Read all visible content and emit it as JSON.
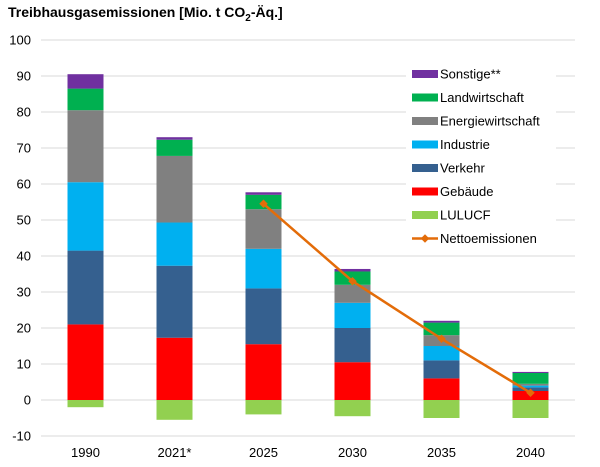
{
  "title": {
    "main": "Treibhausgasemissionen [Mio. t CO",
    "sub": "2",
    "suffix": "-Äq.]"
  },
  "chart_data": {
    "type": "bar",
    "stacked": true,
    "categories": [
      "1990",
      "2021*",
      "2025",
      "2030",
      "2035",
      "2040"
    ],
    "ylim": [
      -10,
      100
    ],
    "yticks": [
      -10,
      0,
      10,
      20,
      30,
      40,
      50,
      60,
      70,
      80,
      90,
      100
    ],
    "grid": true,
    "legend_position": "right",
    "series": [
      {
        "name": "Gebäude",
        "color": "#ff0000",
        "values": [
          21,
          17.3,
          15.5,
          10.5,
          6,
          2.5
        ]
      },
      {
        "name": "Verkehr",
        "color": "#35608f",
        "values": [
          20.5,
          20,
          15.5,
          9.5,
          5,
          1
        ]
      },
      {
        "name": "Industrie",
        "color": "#00b0f0",
        "values": [
          19,
          12,
          11,
          7,
          4,
          0.5
        ]
      },
      {
        "name": "Energiewirtschaft",
        "color": "#808080",
        "values": [
          20,
          18.5,
          11,
          5,
          3,
          0.5
        ]
      },
      {
        "name": "Landwirtschaft",
        "color": "#00b050",
        "values": [
          6,
          4.5,
          4,
          3.7,
          3.5,
          3
        ]
      },
      {
        "name": "Sonstige**",
        "color": "#7030a0",
        "values": [
          4,
          0.7,
          0.7,
          0.7,
          0.5,
          0.3
        ]
      },
      {
        "name": "LULUCF",
        "color": "#92d050",
        "values": [
          -2,
          -5.5,
          -4,
          -4.5,
          -5,
          -5
        ]
      }
    ],
    "line_series": {
      "name": "Nettoemissionen",
      "color": "#e36c09",
      "values": [
        null,
        null,
        54.5,
        33,
        17,
        2
      ]
    },
    "legend_order": [
      "Sonstige**",
      "Landwirtschaft",
      "Energiewirtschaft",
      "Industrie",
      "Verkehr",
      "Gebäude",
      "LULUCF",
      "Nettoemissionen"
    ]
  }
}
